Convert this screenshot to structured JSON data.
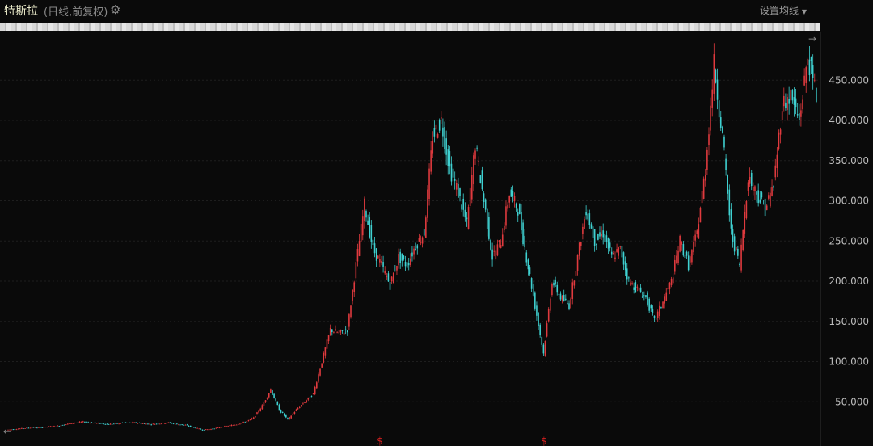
{
  "header": {
    "title": "特斯拉",
    "subtitle": "(日线,前复权)",
    "settings_icon": "gear-icon",
    "ma_button": "设置均线",
    "ma_dropdown_icon": "caret-down-icon"
  },
  "colors": {
    "background": "#0a0a0a",
    "up": "#e03a3e",
    "down": "#3fd1d1",
    "grid": "#1e1e1e",
    "marker": "#d42020"
  },
  "chart_data": {
    "type": "candlestick",
    "title": "特斯拉 (日线,前复权)",
    "ylim": [
      0,
      500
    ],
    "yticks": [
      "50.000",
      "100.000",
      "150.000",
      "200.000",
      "250.000",
      "300.000",
      "350.000",
      "400.000",
      "450.000"
    ],
    "ytick_values": [
      50,
      100,
      150,
      200,
      250,
      300,
      350,
      400,
      450
    ],
    "grid": true,
    "close_approx": [
      15,
      16,
      17,
      18,
      18,
      19,
      20,
      22,
      24,
      25,
      24,
      23,
      22,
      23,
      24,
      24,
      23,
      22,
      23,
      24,
      22,
      21,
      18,
      15,
      16,
      18,
      20,
      22,
      25,
      30,
      45,
      65,
      40,
      28,
      40,
      50,
      60,
      100,
      140,
      135,
      140,
      220,
      295,
      240,
      220,
      195,
      230,
      220,
      245,
      260,
      380,
      400,
      340,
      310,
      270,
      370,
      300,
      230,
      250,
      310,
      290,
      230,
      170,
      110,
      200,
      180,
      170,
      230,
      290,
      250,
      260,
      230,
      240,
      200,
      190,
      180,
      150,
      175,
      200,
      250,
      220,
      260,
      340,
      470,
      380,
      260,
      220,
      330,
      310,
      290,
      320,
      420,
      430,
      400,
      480,
      430
    ],
    "markers": [
      {
        "label": "$",
        "position": "bottom"
      },
      {
        "label": "$",
        "position": "bottom"
      }
    ]
  }
}
